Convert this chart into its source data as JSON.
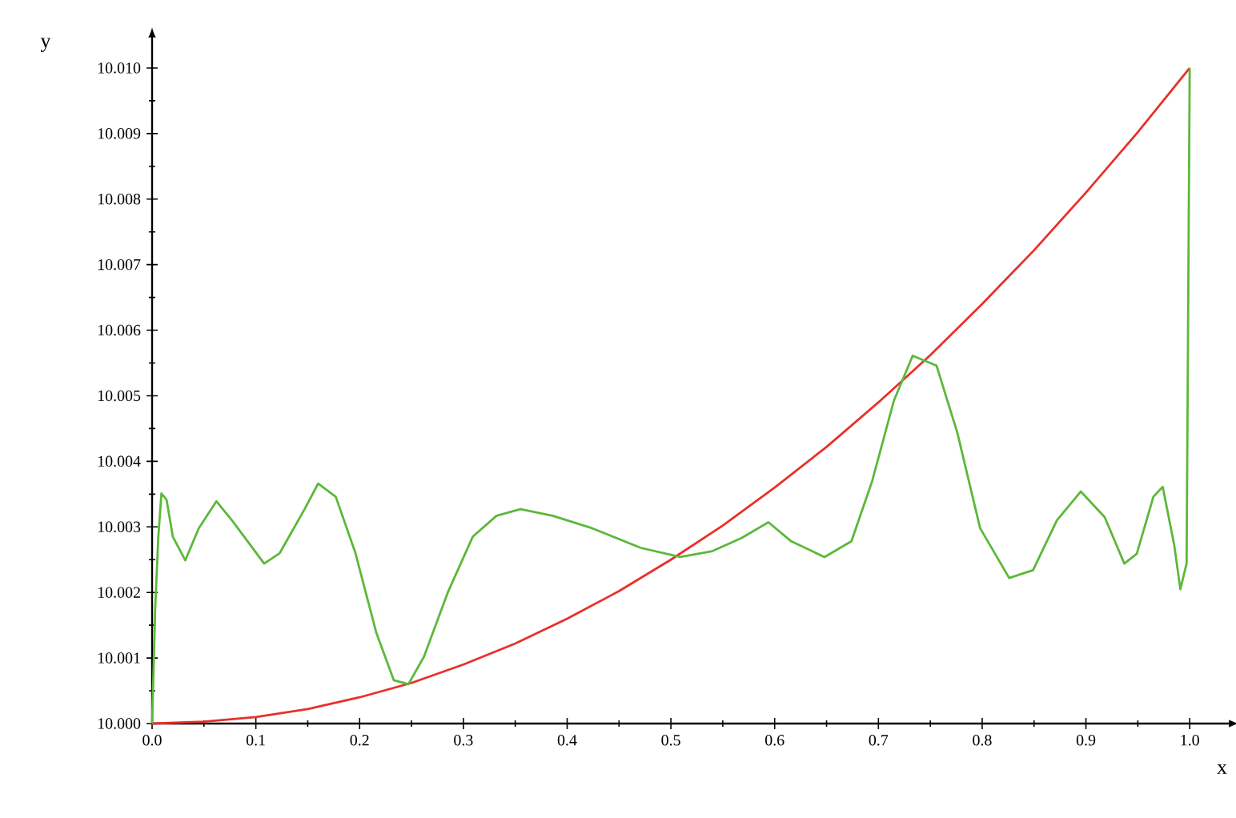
{
  "chart_data": {
    "type": "line",
    "xlabel": "x",
    "ylabel": "y",
    "xlim": [
      0,
      1.04
    ],
    "ylim": [
      10.0,
      10.0105
    ],
    "xticks": [
      {
        "value": 0,
        "label": "0.0"
      },
      {
        "value": 0.1,
        "label": "0.1"
      },
      {
        "value": 0.2,
        "label": "0.2"
      },
      {
        "value": 0.3,
        "label": "0.3"
      },
      {
        "value": 0.4,
        "label": "0.4"
      },
      {
        "value": 0.5,
        "label": "0.5"
      },
      {
        "value": 0.6,
        "label": "0.6"
      },
      {
        "value": 0.7,
        "label": "0.7"
      },
      {
        "value": 0.8,
        "label": "0.8"
      },
      {
        "value": 0.9,
        "label": "0.9"
      },
      {
        "value": 1.0,
        "label": "1.0"
      }
    ],
    "yticks": [
      {
        "value": 10.0,
        "label": "10.000"
      },
      {
        "value": 10.001,
        "label": "10.001"
      },
      {
        "value": 10.002,
        "label": "10.002"
      },
      {
        "value": 10.003,
        "label": "10.003"
      },
      {
        "value": 10.004,
        "label": "10.004"
      },
      {
        "value": 10.005,
        "label": "10.005"
      },
      {
        "value": 10.006,
        "label": "10.006"
      },
      {
        "value": 10.007,
        "label": "10.007"
      },
      {
        "value": 10.008,
        "label": "10.008"
      },
      {
        "value": 10.009,
        "label": "10.009"
      },
      {
        "value": 10.01,
        "label": "10.010"
      }
    ],
    "series": [
      {
        "color": "#e8302a",
        "x": [
          0,
          0.05,
          0.1,
          0.15,
          0.2,
          0.25,
          0.3,
          0.35,
          0.4,
          0.45,
          0.5,
          0.55,
          0.6,
          0.65,
          0.7,
          0.75,
          0.8,
          0.85,
          0.9,
          0.95,
          1.0
        ],
        "values": [
          10.0,
          10.00003,
          10.0001,
          10.00022,
          10.0004,
          10.00062,
          10.0009,
          10.00122,
          10.0016,
          10.00202,
          10.0025,
          10.00302,
          10.0036,
          10.00422,
          10.0049,
          10.00562,
          10.0064,
          10.00722,
          10.0081,
          10.00902,
          10.01
        ]
      },
      {
        "color": "#5cb83a",
        "x": [
          0,
          0.003,
          0.006,
          0.009,
          0.014,
          0.02,
          0.032,
          0.045,
          0.062,
          0.077,
          0.108,
          0.123,
          0.147,
          0.16,
          0.177,
          0.196,
          0.216,
          0.233,
          0.247,
          0.262,
          0.285,
          0.309,
          0.332,
          0.355,
          0.386,
          0.424,
          0.471,
          0.509,
          0.54,
          0.568,
          0.594,
          0.616,
          0.648,
          0.674,
          0.694,
          0.715,
          0.733,
          0.756,
          0.776,
          0.798,
          0.826,
          0.849,
          0.872,
          0.895,
          0.918,
          0.937,
          0.949,
          0.965,
          0.974,
          0.985,
          0.991,
          0.997,
          1.0
        ],
        "values": [
          10.0,
          10.00176,
          10.00285,
          10.00351,
          10.00341,
          10.00285,
          10.00249,
          10.00298,
          10.00339,
          10.0031,
          10.00244,
          10.0026,
          10.00327,
          10.00366,
          10.00346,
          10.0026,
          10.00139,
          10.00066,
          10.0006,
          10.00102,
          10.002,
          10.00285,
          10.00317,
          10.00327,
          10.00317,
          10.00298,
          10.00268,
          10.00254,
          10.00263,
          10.00283,
          10.00307,
          10.00278,
          10.00254,
          10.00278,
          10.0037,
          10.00493,
          10.00561,
          10.00546,
          10.00444,
          10.00298,
          10.00222,
          10.00234,
          10.0031,
          10.00354,
          10.00315,
          10.00244,
          10.00259,
          10.00346,
          10.00361,
          10.00273,
          10.00205,
          10.00244,
          10.01
        ]
      }
    ]
  }
}
